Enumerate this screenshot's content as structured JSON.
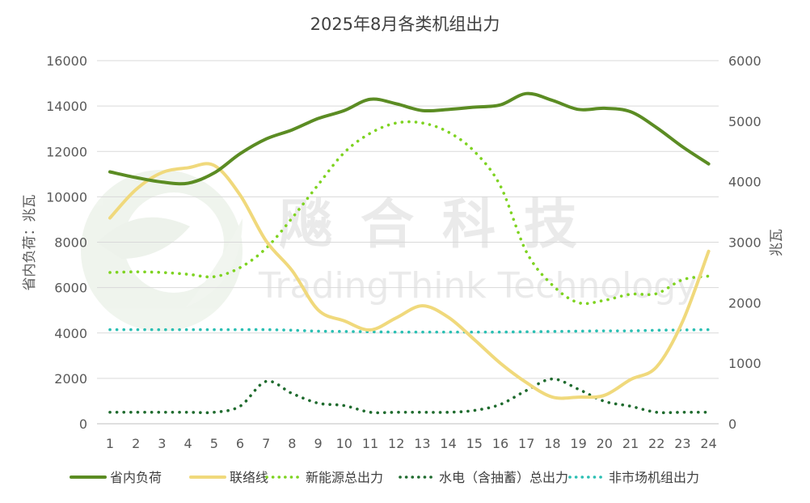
{
  "chart_data": {
    "type": "line",
    "title": "2025年8月各类机组出力",
    "y_left_label": "省内负荷：兆瓦",
    "y_right_label": "兆瓦",
    "y_left_lim": [
      0,
      16000
    ],
    "y_left_ticks": [
      "0",
      "2000",
      "4000",
      "6000",
      "8000",
      "10000",
      "12000",
      "14000",
      "16000"
    ],
    "y_right_lim": [
      0,
      6000
    ],
    "y_right_ticks": [
      "0",
      "1000",
      "2000",
      "3000",
      "4000",
      "5000",
      "6000"
    ],
    "x": [
      "1",
      "2",
      "3",
      "4",
      "5",
      "6",
      "7",
      "8",
      "9",
      "10",
      "11",
      "12",
      "13",
      "14",
      "15",
      "16",
      "17",
      "18",
      "19",
      "20",
      "21",
      "22",
      "23",
      "24"
    ],
    "grid": true,
    "legend_position": "bottom",
    "series": [
      {
        "name": "省内负荷",
        "axis": "left",
        "style": "solid",
        "color": "#5b8c23",
        "values": [
          11100,
          10850,
          10650,
          10600,
          11050,
          11900,
          12550,
          12950,
          13450,
          13800,
          14300,
          14100,
          13800,
          13850,
          13950,
          14050,
          14550,
          14250,
          13850,
          13900,
          13750,
          13050,
          12200,
          11450
        ]
      },
      {
        "name": "联络线",
        "axis": "right",
        "style": "solid",
        "color": "#f0d97c",
        "values": [
          3400,
          3870,
          4150,
          4230,
          4270,
          3780,
          3020,
          2530,
          1880,
          1700,
          1550,
          1750,
          1950,
          1760,
          1390,
          1000,
          680,
          440,
          440,
          470,
          730,
          940,
          1690,
          2850
        ]
      },
      {
        "name": "新能源总出力",
        "axis": "right",
        "style": "dotted",
        "color": "#7ed321",
        "values": [
          2500,
          2510,
          2500,
          2470,
          2430,
          2580,
          2900,
          3400,
          3950,
          4480,
          4800,
          4970,
          4970,
          4820,
          4500,
          3930,
          2840,
          2290,
          2000,
          2040,
          2140,
          2150,
          2380,
          2440
        ]
      },
      {
        "name": "水电（含抽蓄）总出力",
        "axis": "right",
        "style": "dotted",
        "color": "#1f6b2e",
        "values": [
          190,
          190,
          190,
          190,
          190,
          290,
          700,
          500,
          340,
          300,
          190,
          190,
          190,
          190,
          220,
          320,
          550,
          740,
          570,
          370,
          290,
          190,
          190,
          190
        ]
      },
      {
        "name": "非市场机组出力",
        "axis": "right",
        "style": "dotted",
        "color": "#2bbfb3",
        "values": [
          1555,
          1555,
          1555,
          1555,
          1555,
          1555,
          1555,
          1545,
          1530,
          1525,
          1520,
          1515,
          1515,
          1515,
          1515,
          1515,
          1520,
          1525,
          1530,
          1535,
          1535,
          1545,
          1550,
          1555
        ]
      }
    ]
  },
  "watermark": {
    "cn": "飚 合 科 技",
    "en": "TradingThink Technology"
  }
}
